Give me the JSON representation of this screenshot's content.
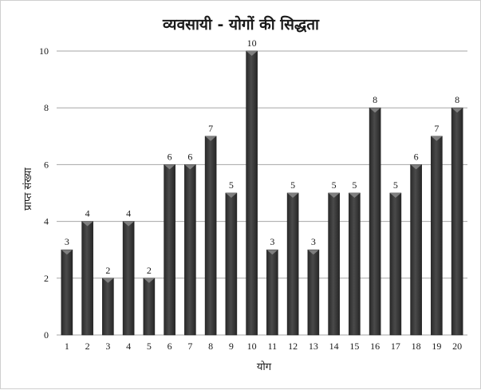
{
  "chart_data": {
    "type": "bar",
    "title": "व्यवसायी - योगों की सिद्धता",
    "xlabel": "योग",
    "ylabel": "प्राप्त संख्या",
    "categories": [
      "1",
      "2",
      "3",
      "4",
      "5",
      "6",
      "7",
      "8",
      "9",
      "10",
      "11",
      "12",
      "13",
      "14",
      "15",
      "16",
      "17",
      "18",
      "19",
      "20"
    ],
    "values": [
      3,
      4,
      2,
      4,
      2,
      6,
      6,
      7,
      5,
      10,
      3,
      5,
      3,
      5,
      5,
      8,
      5,
      6,
      7,
      8
    ],
    "ylim": [
      0,
      10
    ],
    "yticks": [
      0,
      2,
      4,
      6,
      8,
      10
    ],
    "grid": true,
    "legend": "none",
    "data_labels": true,
    "colors": {
      "bar_fill": "#3f3f3f",
      "bar_light": "#8a8a8a",
      "grid": "#a6a6a6",
      "text": "#1a1a1a"
    }
  }
}
